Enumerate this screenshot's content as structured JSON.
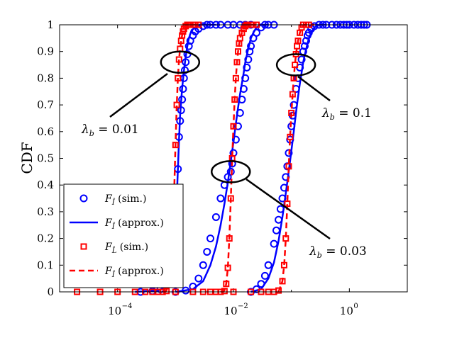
{
  "chart_data": {
    "type": "line",
    "ylabel": "CDF",
    "xlabel": "",
    "x_scale": "log",
    "xlim": [
      1e-05,
      10
    ],
    "ylim": [
      0,
      1
    ],
    "x_ticks": [
      {
        "value": 0.0001,
        "base": "10",
        "exp": "−4"
      },
      {
        "value": 0.01,
        "base": "10",
        "exp": "−2"
      },
      {
        "value": 1,
        "base": "10",
        "exp": "0"
      }
    ],
    "y_ticks": [
      {
        "value": 0,
        "label": "0"
      },
      {
        "value": 0.1,
        "label": "0.1"
      },
      {
        "value": 0.2,
        "label": "0.2"
      },
      {
        "value": 0.3,
        "label": "0.3"
      },
      {
        "value": 0.4,
        "label": "0.4"
      },
      {
        "value": 0.5,
        "label": "0.5"
      },
      {
        "value": 0.6,
        "label": "0.6"
      },
      {
        "value": 0.7,
        "label": "0.7"
      },
      {
        "value": 0.8,
        "label": "0.8"
      },
      {
        "value": 0.9,
        "label": "0.9"
      },
      {
        "value": 1,
        "label": "1"
      }
    ],
    "legend": {
      "placement": "lower-left",
      "entries": [
        {
          "name": "F",
          "sub": "Î",
          "suffix": "(sim.)",
          "marker": "circle",
          "color": "#0000FF"
        },
        {
          "name": "F",
          "sub": "Î",
          "suffix": "(approx.)",
          "marker": "solid-line",
          "color": "#0000FF"
        },
        {
          "name": "F",
          "sub": "L̂",
          "suffix": "(sim.)",
          "marker": "square",
          "color": "#FF0000"
        },
        {
          "name": "F",
          "sub": "Î",
          "suffix": "(approx.)",
          "marker": "dashed-line",
          "color": "#FF0000"
        }
      ]
    },
    "annotations": [
      {
        "lambda": "λ",
        "sub": "b",
        "text": " = 0.01",
        "point_x": 0.0012,
        "point_y": 0.86
      },
      {
        "lambda": "λ",
        "sub": "b",
        "text": " = 0.03",
        "point_x": 0.009,
        "point_y": 0.45
      },
      {
        "lambda": "λ",
        "sub": "b",
        "text": " = 0.1",
        "point_x": 0.12,
        "point_y": 0.85
      }
    ],
    "series": [
      {
        "name": "F_Î (sim.)",
        "color": "#0000FF",
        "marker": "circle",
        "groups": [
          {
            "x": [
              0.00025,
              0.0004,
              0.00055,
              0.0007,
              0.0008,
              0.0009,
              0.001,
              0.0011,
              0.00115,
              0.0012,
              0.00125,
              0.0013,
              0.00135,
              0.0014,
              0.00145,
              0.0015,
              0.0016,
              0.0017,
              0.0018,
              0.002,
              0.0022,
              0.0025,
              0.003,
              0.0035,
              0.004,
              0.005,
              0.006,
              0.008,
              0.01,
              0.013,
              0.016,
              0.02
            ],
            "y": [
              0,
              0.003,
              0.01,
              0.03,
              0.07,
              0.15,
              0.3,
              0.46,
              0.58,
              0.64,
              0.68,
              0.72,
              0.76,
              0.8,
              0.83,
              0.86,
              0.89,
              0.92,
              0.94,
              0.96,
              0.975,
              0.985,
              0.995,
              1,
              1,
              1,
              1,
              1,
              1,
              1,
              1,
              1
            ]
          },
          {
            "x": [
              0.001,
              0.0015,
              0.002,
              0.0025,
              0.003,
              0.0035,
              0.004,
              0.005,
              0.006,
              0.007,
              0.008,
              0.009,
              0.0095,
              0.01,
              0.011,
              0.012,
              0.013,
              0.014,
              0.015,
              0.016,
              0.017,
              0.018,
              0.019,
              0.02,
              0.022,
              0.025,
              0.03,
              0.035,
              0.04,
              0.05
            ],
            "y": [
              0,
              0.005,
              0.02,
              0.05,
              0.1,
              0.15,
              0.2,
              0.28,
              0.35,
              0.4,
              0.43,
              0.45,
              0.48,
              0.52,
              0.57,
              0.62,
              0.67,
              0.72,
              0.76,
              0.8,
              0.84,
              0.87,
              0.9,
              0.92,
              0.95,
              0.97,
              0.99,
              1,
              1,
              1
            ]
          },
          {
            "x": [
              0.02,
              0.025,
              0.03,
              0.035,
              0.04,
              0.05,
              0.055,
              0.06,
              0.065,
              0.07,
              0.075,
              0.08,
              0.085,
              0.09,
              0.095,
              0.1,
              0.105,
              0.11,
              0.12,
              0.13,
              0.14,
              0.15,
              0.16,
              0.17,
              0.18,
              0.19,
              0.2,
              0.22,
              0.25,
              0.3,
              0.35,
              0.4,
              0.5,
              0.6,
              0.7,
              0.8,
              0.9,
              1,
              1.2,
              1.4,
              1.6,
              1.8,
              2
            ],
            "y": [
              0,
              0.01,
              0.03,
              0.06,
              0.1,
              0.18,
              0.23,
              0.27,
              0.31,
              0.35,
              0.39,
              0.43,
              0.47,
              0.52,
              0.57,
              0.62,
              0.66,
              0.7,
              0.76,
              0.8,
              0.84,
              0.87,
              0.9,
              0.92,
              0.94,
              0.96,
              0.97,
              0.985,
              0.995,
              1,
              1,
              1,
              1,
              1,
              1,
              1,
              1,
              1,
              1,
              1,
              1,
              1,
              1
            ]
          }
        ]
      },
      {
        "name": "F_Î (approx.)",
        "color": "#0000FF",
        "style": "solid",
        "groups": [
          {
            "x": [
              0.0002,
              0.0005,
              0.0007,
              0.0008,
              0.0009,
              0.001,
              0.00105,
              0.0011,
              0.00115,
              0.0012,
              0.0013,
              0.0014,
              0.0015,
              0.0016,
              0.0017,
              0.0019,
              0.0022,
              0.0026,
              0.003,
              0.004,
              0.005
            ],
            "y": [
              0,
              0.005,
              0.02,
              0.05,
              0.12,
              0.25,
              0.35,
              0.46,
              0.57,
              0.66,
              0.76,
              0.83,
              0.88,
              0.92,
              0.95,
              0.98,
              0.99,
              1,
              1,
              1,
              1
            ]
          },
          {
            "x": [
              0.001,
              0.002,
              0.003,
              0.004,
              0.005,
              0.006,
              0.007,
              0.008,
              0.009,
              0.01,
              0.011,
              0.012,
              0.013,
              0.014,
              0.015,
              0.016,
              0.018,
              0.02,
              0.022,
              0.025,
              0.03,
              0.04
            ],
            "y": [
              0,
              0.01,
              0.04,
              0.1,
              0.17,
              0.25,
              0.33,
              0.41,
              0.49,
              0.56,
              0.63,
              0.69,
              0.74,
              0.78,
              0.82,
              0.86,
              0.91,
              0.95,
              0.97,
              0.99,
              1,
              1
            ]
          },
          {
            "x": [
              0.02,
              0.03,
              0.04,
              0.05,
              0.06,
              0.07,
              0.08,
              0.09,
              0.1,
              0.11,
              0.12,
              0.13,
              0.14,
              0.15,
              0.16,
              0.18,
              0.2,
              0.22,
              0.25,
              0.3,
              0.4
            ],
            "y": [
              0,
              0.01,
              0.05,
              0.11,
              0.19,
              0.28,
              0.37,
              0.45,
              0.53,
              0.6,
              0.67,
              0.73,
              0.78,
              0.82,
              0.86,
              0.91,
              0.95,
              0.97,
              0.99,
              1,
              1
            ]
          }
        ]
      },
      {
        "name": "F_L̂ (sim.)",
        "color": "#FF0000",
        "marker": "square",
        "groups": [
          {
            "x": [
              2e-05,
              5e-05,
              0.0001,
              0.0002,
              0.0003,
              0.0004,
              0.0005,
              0.0006,
              0.0007,
              0.0008,
              0.00085,
              0.0009,
              0.00095,
              0.001,
              0.00105,
              0.0011,
              0.00115,
              0.0012,
              0.00125,
              0.0013,
              0.00135,
              0.0014,
              0.0015,
              0.0016,
              0.0017,
              0.0018,
              0.002,
              0.0022,
              0.0025
            ],
            "y": [
              0,
              0,
              0,
              0,
              0,
              0,
              0,
              0,
              0.003,
              0.04,
              0.1,
              0.22,
              0.38,
              0.55,
              0.7,
              0.8,
              0.87,
              0.91,
              0.94,
              0.96,
              0.975,
              0.985,
              0.995,
              1,
              1,
              1,
              1,
              1,
              1
            ]
          },
          {
            "x": [
              0.0005,
              0.001,
              0.002,
              0.003,
              0.004,
              0.005,
              0.006,
              0.007,
              0.0075,
              0.008,
              0.0085,
              0.009,
              0.0095,
              0.01,
              0.0105,
              0.011,
              0.0115,
              0.012,
              0.0125,
              0.013,
              0.014,
              0.015,
              0.016,
              0.017,
              0.018,
              0.02,
              0.022,
              0.025
            ],
            "y": [
              0,
              0,
              0,
              0,
              0,
              0,
              0,
              0.003,
              0.03,
              0.09,
              0.2,
              0.35,
              0.5,
              0.62,
              0.72,
              0.8,
              0.86,
              0.9,
              0.93,
              0.95,
              0.97,
              0.985,
              0.995,
              1,
              1,
              1,
              1,
              1
            ]
          },
          {
            "x": [
              0.005,
              0.01,
              0.02,
              0.03,
              0.04,
              0.05,
              0.06,
              0.07,
              0.075,
              0.08,
              0.085,
              0.09,
              0.095,
              0.1,
              0.105,
              0.11,
              0.115,
              0.12,
              0.125,
              0.13,
              0.14,
              0.15,
              0.16,
              0.18,
              0.2
            ],
            "y": [
              0,
              0,
              0,
              0,
              0,
              0,
              0.005,
              0.04,
              0.1,
              0.2,
              0.33,
              0.47,
              0.58,
              0.67,
              0.74,
              0.8,
              0.85,
              0.89,
              0.92,
              0.94,
              0.97,
              0.99,
              1,
              1,
              1
            ]
          }
        ]
      },
      {
        "name": "F_Î (approx.)",
        "color": "#FF0000",
        "style": "dashed",
        "groups": [
          {
            "x": [
              0.0006,
              0.0007,
              0.0008,
              0.00085,
              0.0009,
              0.00095,
              0.001,
              0.00105,
              0.0011,
              0.00115,
              0.0012,
              0.0013,
              0.0014,
              0.0015,
              0.0017,
              0.002,
              0.0025
            ],
            "y": [
              0,
              0.005,
              0.04,
              0.1,
              0.22,
              0.38,
              0.55,
              0.7,
              0.8,
              0.87,
              0.91,
              0.96,
              0.985,
              0.995,
              1,
              1,
              1
            ]
          },
          {
            "x": [
              0.006,
              0.007,
              0.0075,
              0.008,
              0.0085,
              0.009,
              0.0095,
              0.01,
              0.0105,
              0.011,
              0.0115,
              0.012,
              0.013,
              0.014,
              0.015,
              0.017,
              0.02,
              0.025
            ],
            "y": [
              0,
              0.005,
              0.03,
              0.09,
              0.2,
              0.35,
              0.5,
              0.62,
              0.72,
              0.8,
              0.86,
              0.9,
              0.95,
              0.97,
              0.99,
              1,
              1,
              1
            ]
          },
          {
            "x": [
              0.06,
              0.07,
              0.075,
              0.08,
              0.085,
              0.09,
              0.095,
              0.1,
              0.105,
              0.11,
              0.115,
              0.12,
              0.13,
              0.14,
              0.15,
              0.17,
              0.2,
              0.25
            ],
            "y": [
              0,
              0.04,
              0.1,
              0.2,
              0.33,
              0.47,
              0.58,
              0.67,
              0.74,
              0.8,
              0.85,
              0.89,
              0.94,
              0.97,
              0.99,
              1,
              1,
              1
            ]
          }
        ]
      }
    ]
  }
}
